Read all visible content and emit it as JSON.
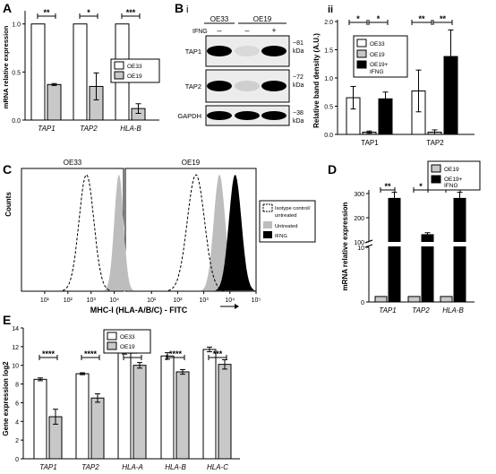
{
  "panels": {
    "A": {
      "letter": "A",
      "ylabel": "mRNA relative expression",
      "categories": [
        "TAP1",
        "TAP2",
        "HLA-B"
      ],
      "ticks": [
        "0.0",
        "0.5",
        "1.0"
      ],
      "legend": [
        "OE33",
        "OE19"
      ],
      "sig": [
        "**",
        "*",
        "***"
      ]
    },
    "Bi": {
      "letter": "B",
      "sub": "i",
      "col_labels": [
        "OE33",
        "OE19"
      ],
      "treatment_label": "IFNG",
      "treatment_marks": [
        "–",
        "–",
        "+"
      ],
      "rows": [
        "TAP1",
        "TAP2",
        "GAPDH"
      ],
      "sizes": [
        "~81",
        "~72",
        "~38"
      ],
      "unit": "kDa"
    },
    "Bii": {
      "sub": "ii",
      "ylabel": "Relative band density (A.U.)",
      "categories": [
        "TAP1",
        "TAP2"
      ],
      "ticks": [
        "0.0",
        "0.5",
        "1.0",
        "1.5",
        "2.0"
      ],
      "legend": [
        "OE33",
        "OE19",
        "OE19+",
        "IFNG"
      ],
      "sig": [
        "*",
        "*",
        "**",
        "**"
      ]
    },
    "C": {
      "letter": "C",
      "ylabel": "Counts",
      "xlabel": "MHC-I (HLA-A/B/C) - FITC",
      "titles": [
        "OE33",
        "OE19"
      ],
      "xticks": [
        "10⁰",
        "10¹",
        "10²",
        "10³",
        "10⁴",
        "10⁵"
      ],
      "legend": [
        "Isotype control/",
        "untreated",
        "Untreated",
        "IFNG"
      ]
    },
    "D": {
      "letter": "D",
      "ylabel": "mRNA relative expression",
      "categories": [
        "TAP1",
        "TAP2",
        "HLA-B"
      ],
      "ticks_low": [
        "0",
        "10"
      ],
      "ticks_high": [
        "100",
        "200",
        "300"
      ],
      "legend": [
        "OE19",
        "OE19+",
        "IFNG"
      ],
      "sig": [
        "**",
        "*",
        "**"
      ]
    },
    "E": {
      "letter": "E",
      "ylabel": "Gene expression log2",
      "categories": [
        "TAP1",
        "TAP2",
        "HLA-A",
        "HLA-B",
        "HLA-C"
      ],
      "ticks": [
        "0",
        "2",
        "4",
        "6",
        "8",
        "10",
        "12",
        "14"
      ],
      "legend": [
        "OE33",
        "OE19"
      ],
      "sig": [
        "****",
        "****",
        "***",
        "****",
        "***"
      ]
    }
  },
  "colors": {
    "white_bar": "#ffffff",
    "gray_bar": "#c8c8c8",
    "black_bar": "#000000",
    "histo_gray": "#bdbdbd"
  },
  "chart_data": [
    {
      "panel": "A",
      "type": "bar",
      "categories": [
        "TAP1",
        "TAP2",
        "HLA-B"
      ],
      "series": [
        {
          "name": "OE33",
          "values": [
            1.0,
            1.0,
            1.0
          ],
          "errors": [
            0,
            0,
            0
          ]
        },
        {
          "name": "OE19",
          "values": [
            0.37,
            0.35,
            0.12
          ],
          "errors": [
            0.01,
            0.14,
            0.05
          ]
        }
      ],
      "ylabel": "mRNA relative expression",
      "ylim": [
        0,
        1.1
      ]
    },
    {
      "panel": "Bii",
      "type": "bar",
      "categories": [
        "TAP1",
        "TAP2"
      ],
      "series": [
        {
          "name": "OE33",
          "values": [
            0.65,
            0.77
          ],
          "errors": [
            0.2,
            0.37
          ]
        },
        {
          "name": "OE19",
          "values": [
            0.04,
            0.04
          ],
          "errors": [
            0.02,
            0.04
          ]
        },
        {
          "name": "OE19+ IFNG",
          "values": [
            0.63,
            1.38
          ],
          "errors": [
            0.12,
            0.47
          ]
        }
      ],
      "ylabel": "Relative band density (A.U.)",
      "ylim": [
        0,
        2.0
      ]
    },
    {
      "panel": "C",
      "type": "area",
      "xlabel": "MHC-I (HLA-A/B/C) - FITC",
      "ylabel": "Counts",
      "xscale": "log",
      "xlim": [
        1,
        100000
      ],
      "histograms": [
        {
          "plot": "OE33",
          "name": "Isotype control/ untreated",
          "style": "dashed",
          "peak_log10": 2.8,
          "width_log10": 0.32
        },
        {
          "plot": "OE33",
          "name": "Untreated",
          "style": "gray",
          "peak_log10": 4.2,
          "width_log10": 0.2
        },
        {
          "plot": "OE19",
          "name": "Isotype control/ untreated",
          "style": "dashed",
          "peak_log10": 2.7,
          "width_log10": 0.33
        },
        {
          "plot": "OE19",
          "name": "Untreated",
          "style": "gray",
          "peak_log10": 3.6,
          "width_log10": 0.22
        },
        {
          "plot": "OE19",
          "name": "IFNG",
          "style": "black",
          "peak_log10": 4.2,
          "width_log10": 0.24
        }
      ]
    },
    {
      "panel": "D",
      "type": "bar",
      "categories": [
        "TAP1",
        "TAP2",
        "HLA-B"
      ],
      "series": [
        {
          "name": "OE19",
          "values": [
            1,
            1,
            1
          ],
          "errors": [
            0,
            0,
            0
          ]
        },
        {
          "name": "OE19+ IFNG",
          "values": [
            280,
            130,
            280
          ],
          "errors": [
            25,
            8,
            25
          ]
        }
      ],
      "ylabel": "mRNA relative expression",
      "yscale": "broken",
      "ylim_low": [
        0,
        10
      ],
      "ylim_high": [
        100,
        300
      ]
    },
    {
      "panel": "E",
      "type": "bar",
      "categories": [
        "TAP1",
        "TAP2",
        "HLA-A",
        "HLA-B",
        "HLA-C"
      ],
      "series": [
        {
          "name": "OE33",
          "values": [
            8.5,
            9.1,
            11.5,
            11.0,
            11.7
          ],
          "errors": [
            0.15,
            0.1,
            0.3,
            0.35,
            0.25
          ]
        },
        {
          "name": "OE19",
          "values": [
            4.5,
            6.5,
            10.0,
            9.3,
            10.1
          ],
          "errors": [
            0.8,
            0.45,
            0.3,
            0.25,
            0.5
          ]
        }
      ],
      "ylabel": "Gene expression log2",
      "ylim": [
        0,
        14
      ]
    }
  ]
}
